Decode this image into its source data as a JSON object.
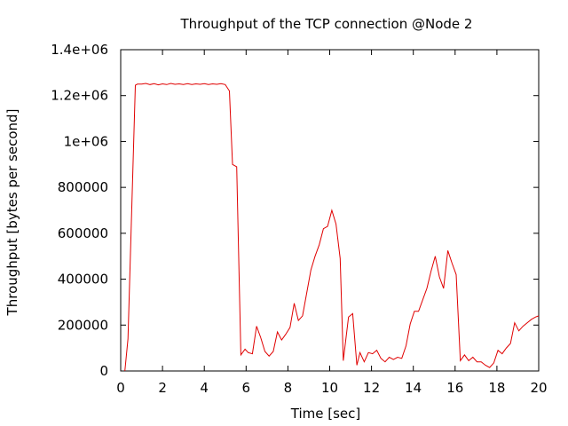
{
  "chart_data": {
    "type": "line",
    "title": "Throughput of the TCP connection @Node 2",
    "xlabel": "Time [sec]",
    "ylabel": "Throughput [bytes per second]",
    "xlim": [
      0,
      20
    ],
    "ylim": [
      0,
      1400000
    ],
    "xticks": [
      0,
      2,
      4,
      6,
      8,
      10,
      12,
      14,
      16,
      18,
      20
    ],
    "xtick_labels": [
      "0",
      "2",
      "4",
      "6",
      "8",
      "10",
      "12",
      "14",
      "16",
      "18",
      "20"
    ],
    "yticks": [
      0,
      200000,
      400000,
      600000,
      800000,
      1000000,
      1200000,
      1400000
    ],
    "ytick_labels": [
      "0",
      "200000",
      "400000",
      "600000",
      "800000",
      "1e+06",
      "1.2e+06",
      "1.4e+06"
    ],
    "grid": false,
    "legend": "none",
    "line_color": "#e00000",
    "series": [
      {
        "x": [
          0.2,
          0.35,
          0.5,
          0.7,
          0.8,
          1.0,
          1.2,
          1.4,
          1.6,
          1.8,
          2.0,
          2.2,
          2.4,
          2.6,
          2.8,
          3.0,
          3.2,
          3.4,
          3.6,
          3.8,
          4.0,
          4.2,
          4.4,
          4.6,
          4.8,
          5.0,
          5.2,
          5.35,
          5.55,
          5.75,
          5.95,
          6.1,
          6.3,
          6.5,
          6.7,
          6.9,
          7.1,
          7.3,
          7.5,
          7.7,
          7.9,
          8.1,
          8.3,
          8.5,
          8.7,
          8.9,
          9.1,
          9.3,
          9.5,
          9.7,
          9.9,
          10.1,
          10.3,
          10.5,
          10.65,
          10.9,
          11.1,
          11.3,
          11.45,
          11.65,
          11.85,
          12.05,
          12.25,
          12.45,
          12.65,
          12.85,
          13.05,
          13.25,
          13.45,
          13.65,
          13.85,
          14.05,
          14.25,
          14.45,
          14.65,
          14.85,
          15.05,
          15.25,
          15.45,
          15.65,
          15.85,
          16.05,
          16.25,
          16.45,
          16.65,
          16.85,
          17.05,
          17.25,
          17.45,
          17.65,
          17.85,
          18.05,
          18.25,
          18.45,
          18.65,
          18.85,
          19.05,
          19.25,
          19.45,
          19.65,
          19.85,
          20.0
        ],
        "y": [
          0,
          140000,
          620000,
          1245000,
          1250000,
          1250000,
          1253000,
          1248000,
          1252000,
          1247000,
          1251000,
          1248000,
          1253000,
          1249000,
          1251000,
          1248000,
          1252000,
          1248000,
          1251000,
          1249000,
          1252000,
          1248000,
          1251000,
          1249000,
          1252000,
          1248000,
          1220000,
          900000,
          890000,
          70000,
          95000,
          80000,
          75000,
          195000,
          145000,
          85000,
          65000,
          85000,
          170000,
          135000,
          160000,
          190000,
          295000,
          220000,
          240000,
          340000,
          440000,
          500000,
          550000,
          620000,
          630000,
          700000,
          640000,
          490000,
          45000,
          235000,
          250000,
          25000,
          80000,
          40000,
          80000,
          75000,
          90000,
          55000,
          40000,
          60000,
          50000,
          60000,
          55000,
          110000,
          205000,
          260000,
          260000,
          310000,
          360000,
          435000,
          500000,
          410000,
          360000,
          525000,
          470000,
          420000,
          45000,
          70000,
          45000,
          60000,
          40000,
          40000,
          25000,
          15000,
          35000,
          90000,
          75000,
          100000,
          120000,
          210000,
          175000,
          195000,
          210000,
          225000,
          235000,
          240000
        ]
      }
    ]
  }
}
